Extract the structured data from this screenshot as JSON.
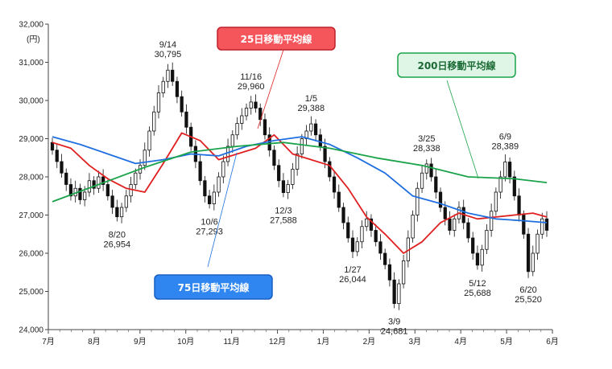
{
  "chart_data": {
    "type": "candlestick",
    "unit": "(円)",
    "ylim": [
      24000,
      32000
    ],
    "y_ticks": [
      "24,000",
      "25,000",
      "26,000",
      "27,000",
      "28,000",
      "29,000",
      "30,000",
      "31,000",
      "32,000"
    ],
    "x_months": [
      "7月",
      "8月",
      "9月",
      "10月",
      "11月",
      "12月",
      "1月",
      "2月",
      "3月",
      "4月",
      "5月",
      "6月"
    ],
    "grid": false,
    "candles": [
      [
        28900,
        28700
      ],
      [
        28700,
        28400
      ],
      [
        28400,
        28100
      ],
      [
        28100,
        27800
      ],
      [
        27800,
        27500
      ],
      [
        27500,
        27700
      ],
      [
        27700,
        27400
      ],
      [
        27400,
        27600
      ],
      [
        27600,
        27900
      ],
      [
        27900,
        27700
      ],
      [
        27700,
        28000
      ],
      [
        28000,
        27800
      ],
      [
        27800,
        27500
      ],
      [
        27500,
        27200
      ],
      [
        27200,
        26954
      ],
      [
        26954,
        27200
      ],
      [
        27200,
        27500
      ],
      [
        27500,
        27800
      ],
      [
        27800,
        28100
      ],
      [
        28100,
        28300
      ],
      [
        28300,
        28700
      ],
      [
        28700,
        29200
      ],
      [
        29200,
        29700
      ],
      [
        29700,
        30200
      ],
      [
        30200,
        30500
      ],
      [
        30500,
        30795
      ],
      [
        30795,
        30500
      ],
      [
        30500,
        30100
      ],
      [
        30100,
        29700
      ],
      [
        29700,
        29300
      ],
      [
        29300,
        28800
      ],
      [
        28800,
        28400
      ],
      [
        28400,
        27900
      ],
      [
        27900,
        27500
      ],
      [
        27500,
        27293
      ],
      [
        27293,
        27600
      ],
      [
        27600,
        28000
      ],
      [
        28000,
        28400
      ],
      [
        28400,
        28800
      ],
      [
        28800,
        29100
      ],
      [
        29100,
        29400
      ],
      [
        29400,
        29600
      ],
      [
        29600,
        29800
      ],
      [
        29800,
        29960
      ],
      [
        29960,
        29800
      ],
      [
        29800,
        29500
      ],
      [
        29500,
        29100
      ],
      [
        29100,
        28700
      ],
      [
        28700,
        28300
      ],
      [
        28300,
        27900
      ],
      [
        27900,
        27588
      ],
      [
        27588,
        27800
      ],
      [
        27800,
        28200
      ],
      [
        28200,
        28600
      ],
      [
        28600,
        29000
      ],
      [
        29000,
        29200
      ],
      [
        29200,
        29388
      ],
      [
        29388,
        29100
      ],
      [
        29100,
        28800
      ],
      [
        28800,
        28400
      ],
      [
        28400,
        28000
      ],
      [
        28000,
        27600
      ],
      [
        27600,
        27200
      ],
      [
        27200,
        26800
      ],
      [
        26800,
        26400
      ],
      [
        26400,
        26044
      ],
      [
        26044,
        26300
      ],
      [
        26300,
        26700
      ],
      [
        26700,
        26900
      ],
      [
        26900,
        26600
      ],
      [
        26600,
        26300
      ],
      [
        26300,
        26000
      ],
      [
        26000,
        25700
      ],
      [
        25700,
        25300
      ],
      [
        25300,
        24681
      ],
      [
        24681,
        25200
      ],
      [
        25200,
        25800
      ],
      [
        25800,
        26400
      ],
      [
        26400,
        27000
      ],
      [
        27000,
        27700
      ],
      [
        27700,
        28100
      ],
      [
        28100,
        28338
      ],
      [
        28338,
        28000
      ],
      [
        28000,
        27600
      ],
      [
        27600,
        27200
      ],
      [
        27200,
        26900
      ],
      [
        26900,
        26600
      ],
      [
        26600,
        26900
      ],
      [
        26900,
        27200
      ],
      [
        27200,
        26800
      ],
      [
        26800,
        26400
      ],
      [
        26400,
        26000
      ],
      [
        26000,
        25688
      ],
      [
        25688,
        26100
      ],
      [
        26100,
        26600
      ],
      [
        26600,
        27100
      ],
      [
        27100,
        27600
      ],
      [
        27600,
        28000
      ],
      [
        28000,
        28389
      ],
      [
        28389,
        28000
      ],
      [
        28000,
        27500
      ],
      [
        27500,
        27000
      ],
      [
        27000,
        26500
      ],
      [
        26500,
        25520
      ],
      [
        25520,
        26000
      ],
      [
        26000,
        26500
      ],
      [
        26500,
        26900
      ],
      [
        26900,
        26600
      ]
    ],
    "series": [
      {
        "name": "25日移動平均線",
        "color": "#e02020",
        "x": [
          0,
          4,
          8,
          12,
          16,
          20,
          24,
          28,
          32,
          36,
          40,
          44,
          48,
          52,
          56,
          60,
          64,
          68,
          72,
          76,
          80,
          84,
          88,
          92,
          96,
          100,
          104,
          107
        ],
        "values": [
          28900,
          28750,
          28300,
          27950,
          27700,
          27600,
          28350,
          29150,
          28950,
          28450,
          28600,
          28750,
          29100,
          28600,
          28450,
          28300,
          27700,
          26950,
          26500,
          26000,
          26300,
          26800,
          27050,
          26900,
          26950,
          27000,
          27050,
          26950
        ]
      },
      {
        "name": "75日移動平均線",
        "color": "#1f6fe0",
        "x": [
          0,
          6,
          12,
          18,
          24,
          30,
          36,
          42,
          48,
          54,
          60,
          66,
          72,
          78,
          84,
          90,
          96,
          102,
          107
        ],
        "values": [
          29050,
          28850,
          28600,
          28350,
          28450,
          28600,
          28550,
          28800,
          28950,
          29050,
          28850,
          28500,
          28100,
          27500,
          27300,
          27050,
          26900,
          26850,
          26800
        ]
      },
      {
        "name": "200日移動平均線",
        "color": "#1aa34a",
        "x": [
          0,
          10,
          20,
          30,
          40,
          50,
          60,
          70,
          80,
          90,
          100,
          107
        ],
        "values": [
          27350,
          27800,
          28250,
          28650,
          28800,
          28900,
          28750,
          28500,
          28300,
          28000,
          27950,
          27850
        ]
      }
    ],
    "annotations": [
      {
        "date": "9/14",
        "value": "30,795",
        "i": 25,
        "pos": "above"
      },
      {
        "date": "8/20",
        "value": "26,954",
        "i": 14,
        "pos": "below"
      },
      {
        "date": "10/6",
        "value": "27,293",
        "i": 34,
        "pos": "below"
      },
      {
        "date": "11/16",
        "value": "29,960",
        "i": 43,
        "pos": "above"
      },
      {
        "date": "12/3",
        "value": "27,588",
        "i": 50,
        "pos": "below"
      },
      {
        "date": "1/5",
        "value": "29,388",
        "i": 56,
        "pos": "above"
      },
      {
        "date": "1/27",
        "value": "26,044",
        "i": 65,
        "pos": "below"
      },
      {
        "date": "3/9",
        "value": "24,681",
        "i": 74,
        "pos": "below"
      },
      {
        "date": "3/25",
        "value": "28,338",
        "i": 81,
        "pos": "above"
      },
      {
        "date": "5/12",
        "value": "25,688",
        "i": 92,
        "pos": "below"
      },
      {
        "date": "6/9",
        "value": "28,389",
        "i": 98,
        "pos": "above"
      },
      {
        "date": "6/20",
        "value": "25,520",
        "i": 103,
        "pos": "below"
      }
    ],
    "labels": {
      "ma25": "25日移動平均線",
      "ma75": "75日移動平均線",
      "ma200": "200日移動平均線"
    }
  }
}
